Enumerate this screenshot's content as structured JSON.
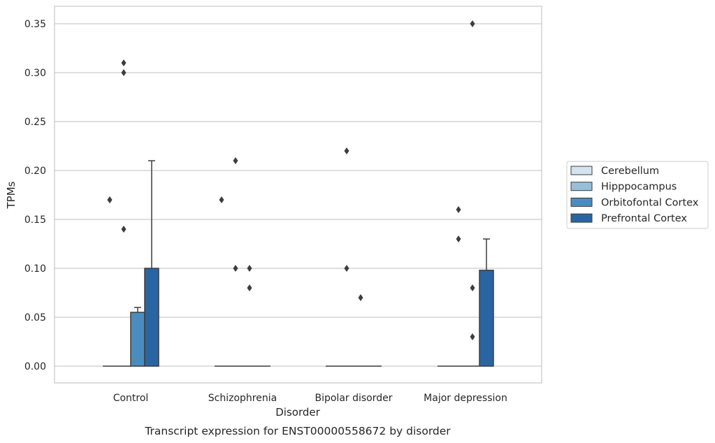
{
  "chart_data": {
    "type": "bar",
    "title": "",
    "caption": "Transcript expression for ENST00000558672 by disorder",
    "xlabel": "Disorder",
    "ylabel": "TPMs",
    "ylim": [
      -0.017,
      0.368
    ],
    "yticks": [
      "0.00",
      "0.05",
      "0.10",
      "0.15",
      "0.20",
      "0.25",
      "0.30",
      "0.35"
    ],
    "grid": "horizontal",
    "legend_position": "right",
    "categories": [
      "Control",
      "Schizophrenia",
      "Bipolar disorder",
      "Major depression"
    ],
    "series": [
      {
        "name": "Cerebellum",
        "color": "#d4e3f0",
        "values": [
          0,
          0,
          0,
          0
        ],
        "whisker_high": [
          null,
          null,
          null,
          null
        ],
        "outliers": [
          [
            0.17,
            0.17
          ],
          [
            0.17
          ],
          [],
          []
        ]
      },
      {
        "name": "Hipppocampus",
        "color": "#97bfd9",
        "values": [
          0,
          0,
          0,
          0
        ],
        "whisker_high": [
          null,
          null,
          null,
          null
        ],
        "outliers": [
          [
            0.14,
            0.3,
            0.31
          ],
          [
            0.1,
            0.21
          ],
          [
            0.1,
            0.22
          ],
          [
            0.13,
            0.16
          ]
        ]
      },
      {
        "name": "Orbitofontal Cortex",
        "color": "#4b8cbe",
        "values": [
          0.055,
          0,
          0,
          0
        ],
        "whisker_high": [
          0.06,
          null,
          null,
          null
        ],
        "outliers": [
          [],
          [
            0.08,
            0.1
          ],
          [
            0.07
          ],
          [
            0.03,
            0.08,
            0.35
          ]
        ]
      },
      {
        "name": "Prefrontal Cortex",
        "color": "#2a65a3",
        "values": [
          0.1,
          0,
          0,
          0.098
        ],
        "whisker_high": [
          0.21,
          null,
          null,
          0.13
        ],
        "outliers": [
          [],
          [],
          [],
          []
        ]
      }
    ]
  }
}
